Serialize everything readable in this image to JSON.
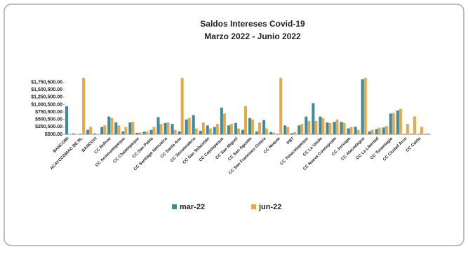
{
  "chart_data": {
    "type": "bar",
    "title": "Saldos  Intereses Covid-19",
    "subtitle": "Marzo 2022 - Junio 2022",
    "categories": [
      "BANCOMI",
      null,
      "ACAYCCOMAC DE RL",
      null,
      "BANCOVI",
      null,
      "CC Bolivar",
      null,
      "CC Acomuntepeque",
      null,
      "CC Chalatepeque",
      null,
      "CC San Pablo",
      null,
      "CC Santiago Nonualco",
      null,
      "CC Santa Ana",
      null,
      "CC Sonsonateca",
      null,
      "CC San Sebastián",
      null,
      "CC Cojutepeque",
      null,
      "CC San Miguel",
      null,
      "CC San Agustín",
      null,
      "CC San Francisco Gotera",
      null,
      "CC Nequia",
      null,
      "PBT",
      null,
      "CC Tonacatepeque",
      null,
      "CC La Unión",
      null,
      "CC Nueva Concepción",
      null,
      "CC Jucuapa",
      null,
      "CC Atacodagua",
      null,
      "CC La Libertad",
      null,
      "CC Tonantagio",
      null,
      "CC Ciudad Arce",
      null,
      "CC Colón",
      null
    ],
    "series": [
      {
        "name": "mar-22",
        "color": "#3b8c9e",
        "values": [
          950000,
          30000,
          20000,
          150000,
          30000,
          250000,
          600000,
          400000,
          100000,
          400000,
          50000,
          90000,
          150000,
          580000,
          380000,
          350000,
          100000,
          500000,
          650000,
          120000,
          300000,
          250000,
          900000,
          300000,
          380000,
          150000,
          550000,
          100000,
          480000,
          80000,
          20000,
          300000,
          40000,
          300000,
          600000,
          1050000,
          600000,
          400000,
          420000,
          420000,
          200000,
          260000,
          1850000,
          100000,
          180000,
          230000,
          700000,
          800000,
          20000,
          20000,
          20000,
          20000
        ]
      },
      {
        "name": "jun-22",
        "color": "#e8a848",
        "values": [
          20000,
          10000,
          1900000,
          250000,
          20000,
          300000,
          550000,
          300000,
          250000,
          420000,
          60000,
          100000,
          250000,
          350000,
          400000,
          150000,
          1900000,
          550000,
          200000,
          400000,
          200000,
          350000,
          700000,
          350000,
          200000,
          950000,
          500000,
          400000,
          200000,
          60000,
          1900000,
          250000,
          80000,
          350000,
          450000,
          450000,
          550000,
          380000,
          500000,
          380000,
          250000,
          150000,
          1900000,
          150000,
          220000,
          280000,
          720000,
          850000,
          350000,
          600000,
          250000,
          30000
        ]
      }
    ],
    "ylim": [
      0,
      2000000
    ],
    "yticks": [
      {
        "value": 500,
        "label": "$500.00"
      },
      {
        "value": 250500,
        "label": "$250,500.00"
      },
      {
        "value": 500500,
        "label": "$500,500.00"
      },
      {
        "value": 750500,
        "label": "$750,500.00"
      },
      {
        "value": 1000500,
        "label": "$1,000,500.00"
      },
      {
        "value": 1250500,
        "label": "$1,250,500.00"
      },
      {
        "value": 1500500,
        "label": "$1,500,500.00"
      },
      {
        "value": 1750500,
        "label": "$1,750,500.00"
      }
    ],
    "legend": "bottom"
  }
}
